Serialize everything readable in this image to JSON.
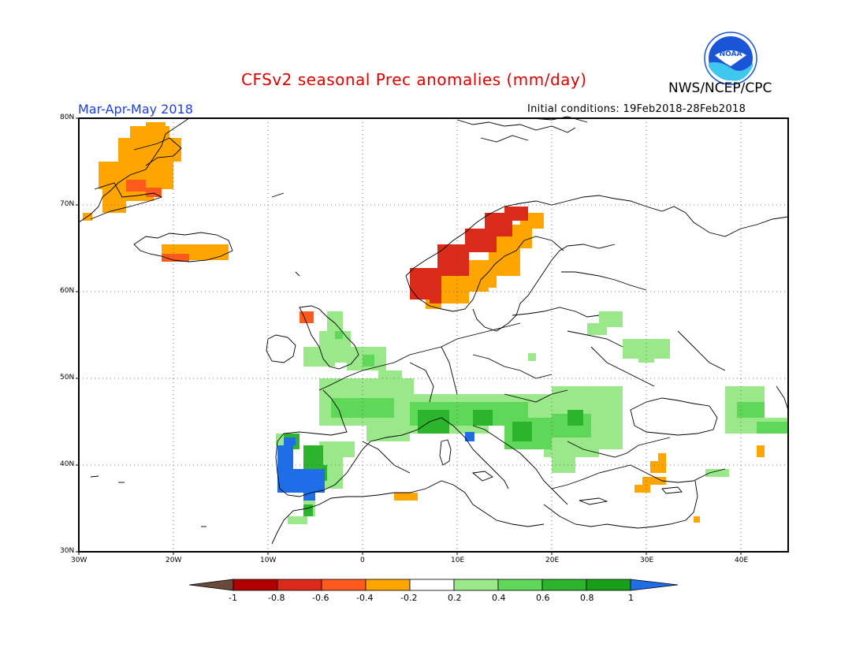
{
  "header": {
    "title": "CFSv2 seasonal Prec anomalies (mm/day)",
    "season": "Mar-Apr-May 2018",
    "initial_conditions": "Initial conditions: 19Feb2018-28Feb2018",
    "agency": "NWS/NCEP/CPC",
    "logo_text": "NOAA"
  },
  "axes": {
    "lat_labels": [
      "80N",
      "70N",
      "60N",
      "50N",
      "40N",
      "30N"
    ],
    "lon_labels": [
      "30W",
      "20W",
      "10W",
      "0",
      "10E",
      "20E",
      "30E",
      "40E"
    ]
  },
  "colorbar": {
    "labels": [
      "-1",
      "-0.8",
      "-0.6",
      "-0.4",
      "-0.2",
      "0.2",
      "0.4",
      "0.6",
      "0.8",
      "1"
    ],
    "colors": [
      "#6b4a3a",
      "#b00000",
      "#d92a1a",
      "#ff5a1e",
      "#ffa500",
      "#ffffff",
      "#9ae88a",
      "#5fd85a",
      "#2db42d",
      "#17a017",
      "#1f6ee8"
    ]
  },
  "colors": {
    "ocean": "#ffffff",
    "coast": "#000000",
    "title": "#e00000",
    "season": "#1e3fd6",
    "noaa_blue": "#1a55d8",
    "noaa_cyan": "#3ec8f0"
  }
}
